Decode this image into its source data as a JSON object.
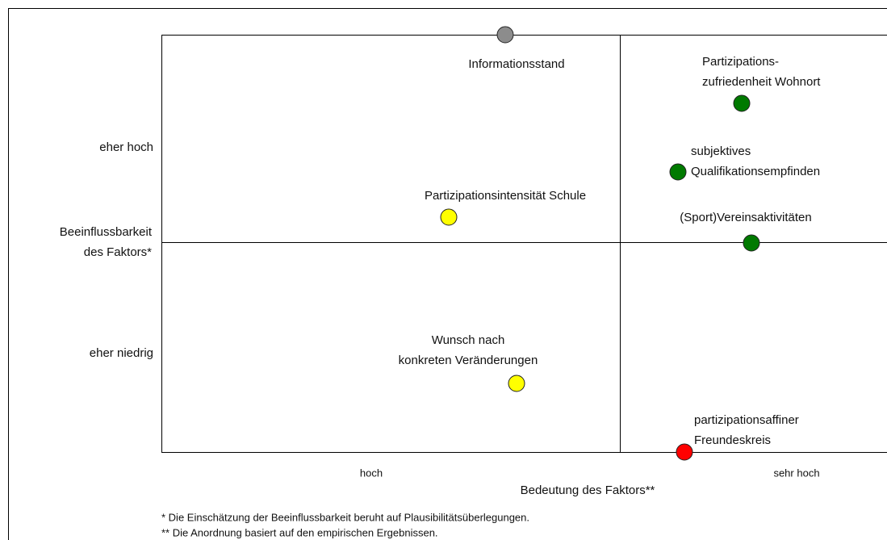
{
  "y_axis": {
    "title": [
      "Beeinflussbarkeit",
      "des Faktors*"
    ],
    "labels": [
      "eher hoch",
      "eher niedrig"
    ]
  },
  "x_axis": {
    "title": "Bedeutung des Faktors**",
    "labels": [
      "hoch",
      "sehr hoch"
    ]
  },
  "nodes": [
    {
      "label": [
        "Informationsstand"
      ],
      "color": "#8c8c8c"
    },
    {
      "label": [
        "Partizipations-",
        "zufriedenheit Wohnort"
      ],
      "color": "#007a00"
    },
    {
      "label": [
        "subjektives",
        "Qualifikationsempfinden"
      ],
      "color": "#007a00"
    },
    {
      "label": [
        "Partizipationsintensität Schule"
      ],
      "color": "#ffff00"
    },
    {
      "label": [
        "(Sport)Vereinsaktivitäten"
      ],
      "color": "#007a00"
    },
    {
      "label": [
        "Wunsch nach",
        "konkreten Veränderungen"
      ],
      "color": "#ffff00"
    },
    {
      "label": [
        "partizipationsaffiner",
        "Freundeskreis"
      ],
      "color": "#ff0000"
    }
  ],
  "footnotes": [
    "* Die Einschätzung der Beeinflussbarkeit beruht auf Plausibilitätsüberlegungen.",
    "** Die Anordnung basiert auf den empirischen Ergebnissen."
  ]
}
